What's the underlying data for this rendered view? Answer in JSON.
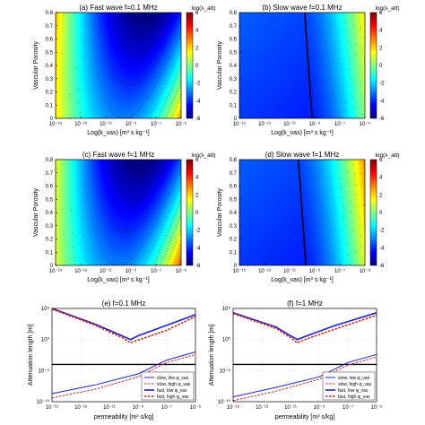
{
  "chart_data": [
    {
      "type": "heatmap",
      "title": "(a) Fast wave f=0.1 MHz",
      "xlabel": "Log(k_vas) [m³ s kg⁻¹]",
      "ylabel": "Vascular Porosity",
      "x_scale": "log",
      "xlim": [
        1e-15,
        1e-05
      ],
      "xticks": [
        "10⁻¹⁵",
        "10⁻¹³",
        "10⁻¹¹",
        "10⁻⁹",
        "10⁻⁷",
        "10⁻⁵"
      ],
      "ylim": [
        0,
        0.8
      ],
      "yticks": [
        "0",
        "0.1",
        "0.2",
        "0.3",
        "0.4",
        "0.5",
        "0.6",
        "0.7",
        "0.8"
      ],
      "colorbar_label": "log(λ_att)",
      "colorbar_range": [
        -6,
        6
      ],
      "colorbar_ticks": [
        "6",
        "4",
        "2",
        "0",
        "-2",
        "-4",
        "-6"
      ],
      "wave": "fast",
      "f_MHz": 0.1
    },
    {
      "type": "heatmap",
      "title": "(b) Slow wave f=0.1 MHz",
      "xlabel": "Log(k_vas) [m³ s kg⁻¹]",
      "ylabel": "Vascular Porosity",
      "x_scale": "log",
      "xlim": [
        1e-15,
        1e-05
      ],
      "xticks": [
        "10⁻¹⁵",
        "10⁻¹³",
        "10⁻¹¹",
        "10⁻⁹",
        "10⁻⁷",
        "10⁻⁵"
      ],
      "ylim": [
        0,
        0.8
      ],
      "yticks": [
        "0",
        "0.1",
        "0.2",
        "0.3",
        "0.4",
        "0.5",
        "0.6",
        "0.7",
        "0.8"
      ],
      "colorbar_label": "log(λ_att)",
      "colorbar_range": [
        -6,
        6
      ],
      "colorbar_ticks": [
        "6",
        "4",
        "2",
        "0",
        "-2",
        "-4",
        "-6"
      ],
      "wave": "slow",
      "f_MHz": 0.1
    },
    {
      "type": "heatmap",
      "title": "(c) Fast wave f=1 MHz",
      "xlabel": "Log(k_vas) [m³ s kg⁻¹]",
      "ylabel": "Vascular Porosity",
      "x_scale": "log",
      "xlim": [
        1e-15,
        1e-05
      ],
      "xticks": [
        "10⁻¹⁵",
        "10⁻¹³",
        "10⁻¹¹",
        "10⁻⁹",
        "10⁻⁷",
        "10⁻⁵"
      ],
      "ylim": [
        0,
        0.8
      ],
      "yticks": [
        "0",
        "0.1",
        "0.2",
        "0.3",
        "0.4",
        "0.5",
        "0.6",
        "0.7",
        "0.8"
      ],
      "colorbar_label": "log(λ_att)",
      "colorbar_range": [
        -6,
        6
      ],
      "colorbar_ticks": [
        "6",
        "4",
        "2",
        "0",
        "-2",
        "-4",
        "-6"
      ],
      "wave": "fast",
      "f_MHz": 1
    },
    {
      "type": "heatmap",
      "title": "(d) Slow wave f=1 MHz",
      "xlabel": "Log(k_vas) [m³ s kg⁻¹]",
      "ylabel": "Vascular Porosity",
      "x_scale": "log",
      "xlim": [
        1e-15,
        1e-05
      ],
      "xticks": [
        "10⁻¹⁵",
        "10⁻¹³",
        "10⁻¹¹",
        "10⁻⁹",
        "10⁻⁷",
        "10⁻⁵"
      ],
      "ylim": [
        0,
        0.8
      ],
      "yticks": [
        "0",
        "0.1",
        "0.2",
        "0.3",
        "0.4",
        "0.5",
        "0.6",
        "0.7",
        "0.8"
      ],
      "colorbar_label": "log(λ_att)",
      "colorbar_range": [
        -6,
        6
      ],
      "colorbar_ticks": [
        "6",
        "4",
        "2",
        "0",
        "-2",
        "-4",
        "-6"
      ],
      "wave": "slow",
      "f_MHz": 1
    },
    {
      "type": "line",
      "title": "(e) f=0.1 MHz",
      "xlabel": "permeability [m³ s/kg]",
      "ylabel": "Attenuation length [m]",
      "x_scale": "log",
      "y_scale": "log",
      "xlim": [
        1e-15,
        1e-05
      ],
      "xticks": [
        "10⁻¹⁵",
        "10⁻¹³",
        "10⁻¹¹",
        "10⁻⁹",
        "10⁻⁷",
        "10⁻⁵"
      ],
      "ylim": [
        1e-10,
        100000.0
      ],
      "yticks": [
        "10⁵",
        "10⁰",
        "10⁻⁵",
        "10⁻¹⁰"
      ],
      "grid": true,
      "legend_position": "bottom-right",
      "hline_y": 0.0001,
      "series": [
        {
          "name": "slow, low φ_vas",
          "color": "#1f1fd0",
          "style": "solid",
          "width": 1,
          "x": [
            1e-15,
            1e-12,
            1e-09,
            1e-07,
            1e-05
          ],
          "y": [
            2e-09,
            5e-08,
            3e-06,
            0.0005,
            0.01
          ]
        },
        {
          "name": "slow, high φ_vas",
          "color": "#e02020",
          "style": "dashed",
          "width": 1,
          "x": [
            1e-15,
            1e-12,
            1e-09,
            1e-07,
            1e-05
          ],
          "y": [
            4e-10,
            1e-08,
            1e-06,
            0.0002,
            0.004
          ]
        },
        {
          "name": "fast, low φ_vas",
          "color": "#1f1fd0",
          "style": "solid",
          "width": 1.6,
          "x": [
            1e-15,
            1e-12,
            1e-10,
            3e-10,
            1e-09,
            1e-07,
            1e-05
          ],
          "y": [
            100000.0,
            300.0,
            3,
            1,
            4,
            200.0,
            10000.0
          ]
        },
        {
          "name": "fast, high φ_vas",
          "color": "#e02020",
          "style": "dashed",
          "width": 1.6,
          "x": [
            1e-15,
            1e-12,
            1e-10,
            3e-10,
            1e-09,
            1e-07,
            1e-05
          ],
          "y": [
            80000.0,
            200.0,
            1.5,
            0.3,
            0.8,
            30.0,
            5000.0
          ]
        }
      ]
    },
    {
      "type": "line",
      "title": "(f) f=1 MHz",
      "xlabel": "permeability [m³ s/kg]",
      "ylabel": "Attenuation length [m]",
      "x_scale": "log",
      "y_scale": "log",
      "xlim": [
        1e-15,
        1e-05
      ],
      "xticks": [
        "10⁻¹⁵",
        "10⁻¹³",
        "10⁻¹¹",
        "10⁻⁹",
        "10⁻⁷",
        "10⁻⁵"
      ],
      "ylim": [
        1e-10,
        100000.0
      ],
      "yticks": [
        "10⁵",
        "10⁰",
        "10⁻⁵",
        "10⁻¹⁰"
      ],
      "grid": true,
      "legend_position": "bottom-right",
      "hline_y": 0.0001,
      "series": [
        {
          "name": "slow, low φ_vas",
          "color": "#1f1fd0",
          "style": "solid",
          "width": 1,
          "x": [
            1e-15,
            1e-12,
            1e-09,
            1e-07,
            1e-05
          ],
          "y": [
            6e-10,
            2e-08,
            1e-06,
            0.0002,
            0.004
          ]
        },
        {
          "name": "slow, high φ_vas",
          "color": "#e02020",
          "style": "dashed",
          "width": 1,
          "x": [
            1e-15,
            1e-12,
            1e-09,
            1e-07,
            1e-05
          ],
          "y": [
            1.5e-10,
            5e-09,
            4e-07,
            8e-05,
            0.0015
          ]
        },
        {
          "name": "fast, low φ_vas",
          "color": "#1f1fd0",
          "style": "solid",
          "width": 1.6,
          "x": [
            1e-15,
            1e-12,
            1e-11,
            3e-11,
            1e-10,
            1e-08,
            1e-05
          ],
          "y": [
            20000.0,
            100.0,
            4,
            1,
            3,
            150.0,
            20000.0
          ]
        },
        {
          "name": "fast, high φ_vas",
          "color": "#e02020",
          "style": "dashed",
          "width": 1.6,
          "x": [
            1e-15,
            1e-12,
            1e-11,
            3e-11,
            1e-10,
            1e-08,
            1e-05
          ],
          "y": [
            15000.0,
            60.0,
            2,
            0.3,
            1,
            40.0,
            8000.0
          ]
        }
      ]
    }
  ]
}
